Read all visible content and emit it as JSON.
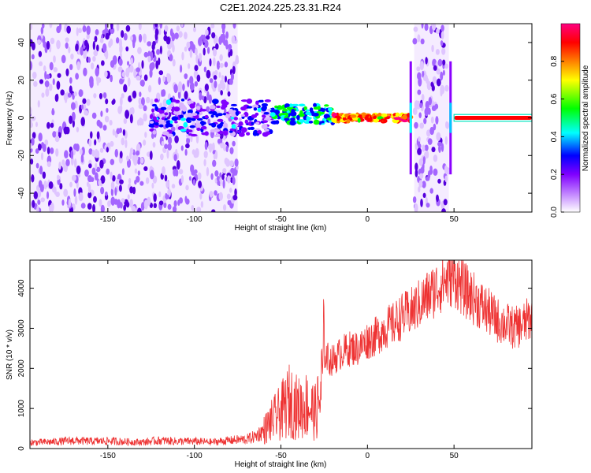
{
  "title": "C2E1.2024.225.23.31.R24",
  "chart_data": [
    {
      "type": "heatmap",
      "xlabel": "Height of straight line (km)",
      "ylabel": "Frequency (Hz)",
      "xlim": [
        -195,
        95
      ],
      "ylim": [
        -50,
        50
      ],
      "x_ticks": [
        -150,
        -100,
        -50,
        0,
        50
      ],
      "y_ticks": [
        -40,
        -20,
        0,
        20,
        40
      ],
      "colorbar": {
        "label": "Normalized spectral amplitude",
        "range": [
          0,
          1
        ],
        "ticks": [
          "0.0",
          "0.2",
          "0.4",
          "0.6",
          "0.8"
        ],
        "tick_values": [
          0.0,
          0.2,
          0.4,
          0.6,
          0.8
        ],
        "colors": [
          "#ffffff",
          "#d9b3ff",
          "#8000ff",
          "#0000ff",
          "#00ffff",
          "#00ff00",
          "#ffff00",
          "#ff8000",
          "#ff0000",
          "#ff0080"
        ]
      },
      "regions": [
        {
          "x": [
            -195,
            -75
          ],
          "freq_spread": [
            -50,
            50
          ],
          "level": "low-noise"
        },
        {
          "x": [
            -125,
            -55
          ],
          "freq_center": 0,
          "freq_halfwidth": 8,
          "level": "0.1-0.4"
        },
        {
          "x": [
            -55,
            -20
          ],
          "freq_center": 2,
          "freq_halfwidth": 4,
          "level": "0.3-0.6"
        },
        {
          "x": [
            -20,
            25
          ],
          "freq_center": 0,
          "freq_halfwidth": 1.5,
          "level": "0.6-1.0"
        },
        {
          "x": [
            27,
            47
          ],
          "freq_spread": [
            -50,
            50
          ],
          "level": "low-noise"
        },
        {
          "x": [
            50,
            95
          ],
          "freq_center": 0,
          "freq_halfwidth": 1.5,
          "level": "1.0"
        }
      ]
    },
    {
      "type": "line",
      "xlabel": "Height of straight line (km)",
      "ylabel": "SNR (10 * v/v)",
      "xlim": [
        -195,
        95
      ],
      "ylim": [
        0,
        4700
      ],
      "x_ticks": [
        -150,
        -100,
        -50,
        0,
        50
      ],
      "y_ticks": [
        0,
        1000,
        2000,
        3000,
        4000
      ],
      "color": "#ee3333",
      "series": [
        {
          "x": [
            -195,
            -180,
            -170,
            -160,
            -150,
            -140,
            -130,
            -120,
            -110,
            -100,
            -90,
            -80,
            -75,
            -70,
            -65,
            -60,
            -55,
            -50,
            -45,
            -40,
            -35,
            -30,
            -27,
            -25,
            -22,
            -20,
            -15,
            -10,
            -5,
            0,
            5,
            10,
            15,
            20,
            25,
            30,
            35,
            40,
            45,
            50,
            55,
            60,
            65,
            70,
            75,
            80,
            85,
            90,
            95
          ],
          "values": [
            150,
            170,
            200,
            180,
            190,
            170,
            160,
            200,
            180,
            180,
            160,
            200,
            220,
            230,
            300,
            450,
            700,
            900,
            1200,
            1000,
            1100,
            900,
            1300,
            2400,
            2200,
            2200,
            2400,
            2500,
            2500,
            2700,
            2800,
            3000,
            3100,
            3300,
            3400,
            3600,
            3800,
            4000,
            4200,
            4300,
            4000,
            3800,
            3600,
            3400,
            3200,
            3100,
            3000,
            3100,
            3300
          ]
        }
      ]
    }
  ]
}
